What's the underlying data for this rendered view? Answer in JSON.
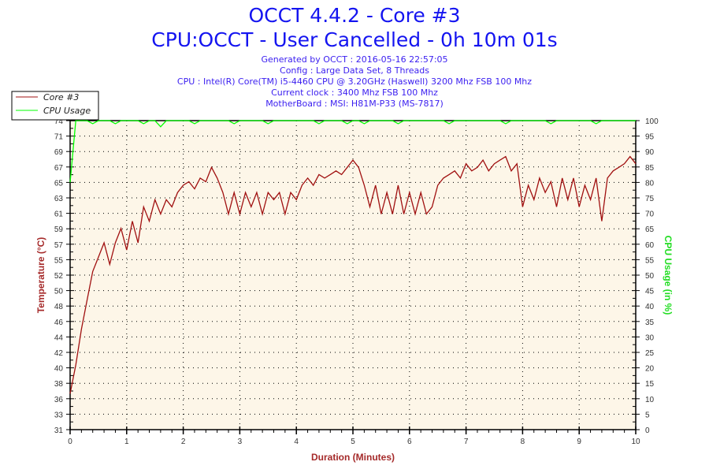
{
  "chart_data": {
    "type": "line",
    "title": "OCCT 4.4.2 - Core #3",
    "subtitle": "CPU:OCCT - User Cancelled - 0h 10m 01s",
    "info_lines": [
      "Generated by OCCT : 2016-05-16 22:57:05",
      "Config : Large Data Set, 8 Threads",
      "CPU : Intel(R) Core(TM) i5-4460 CPU @ 3.20GHz (Haswell) 3200 Mhz FSB 100 Mhz",
      "Current clock : 3400 Mhz FSB 100 Mhz",
      "MotherBoard : MSI: H81M-P33 (MS-7817)"
    ],
    "xlabel": "Duration (Minutes)",
    "ylabel": "Temperature (°C)",
    "y2label": "CPU Usage (in %)",
    "xlim": [
      0,
      10
    ],
    "ylim": [
      31,
      74
    ],
    "y2lim": [
      0,
      100
    ],
    "x_ticks": [
      "0",
      "1",
      "2",
      "3",
      "4",
      "5",
      "6",
      "7",
      "8",
      "9",
      "10"
    ],
    "y_ticks": [
      "74",
      "71",
      "69",
      "67",
      "65",
      "63",
      "61",
      "59",
      "57",
      "55",
      "52",
      "50",
      "48",
      "46",
      "44",
      "42",
      "40",
      "38",
      "36",
      "33",
      "31"
    ],
    "y2_ticks": [
      "100",
      "95",
      "90",
      "85",
      "80",
      "75",
      "70",
      "65",
      "60",
      "55",
      "50",
      "45",
      "40",
      "35",
      "30",
      "25",
      "20",
      "15",
      "10",
      "5",
      "0"
    ],
    "grid": true,
    "legend_position": "top-left",
    "series": [
      {
        "name": "Core #3",
        "axis": "left",
        "color": "#a01010",
        "x_step": 0.1,
        "values": [
          36,
          40,
          45,
          49,
          53,
          55,
          57,
          54,
          57,
          59,
          56,
          60,
          57,
          62,
          60,
          63,
          61,
          63,
          62,
          64,
          65,
          65.5,
          64.5,
          66,
          65.5,
          67.5,
          66,
          64,
          61,
          64,
          61,
          64,
          62,
          64,
          61,
          64,
          63,
          64,
          61,
          64,
          63,
          65,
          66,
          65,
          66.5,
          66,
          66.5,
          67,
          66.5,
          67.5,
          68.5,
          67.5,
          65,
          62,
          65,
          61,
          64,
          61,
          65,
          61,
          64,
          61,
          64,
          61,
          62,
          65,
          66,
          66.5,
          67,
          66,
          68,
          67,
          67.5,
          68.5,
          67,
          68,
          68.5,
          69,
          67,
          68,
          62,
          65,
          63,
          66,
          64,
          65.5,
          62,
          66,
          63,
          66,
          62,
          65,
          63,
          66,
          60,
          66,
          67,
          67.5,
          68,
          69,
          68
        ]
      },
      {
        "name": "CPU Usage",
        "axis": "right",
        "color": "#00ff00",
        "x_step": 0.1,
        "values": [
          80,
          100,
          100,
          100,
          99,
          100,
          100,
          100,
          99,
          100,
          100,
          100,
          100,
          99,
          100,
          100,
          98,
          100,
          100,
          100,
          100,
          100,
          99,
          100,
          100,
          100,
          100,
          100,
          100,
          99,
          100,
          100,
          100,
          100,
          100,
          99,
          100,
          100,
          100,
          100,
          100,
          100,
          100,
          100,
          99,
          100,
          100,
          100,
          100,
          99,
          100,
          100,
          99,
          100,
          100,
          100,
          100,
          100,
          99,
          100,
          100,
          100,
          100,
          100,
          100,
          100,
          100,
          99,
          100,
          100,
          100,
          100,
          100,
          100,
          100,
          100,
          100,
          99,
          100,
          100,
          100,
          100,
          100,
          100,
          100,
          99,
          100,
          100,
          100,
          100,
          100,
          100,
          100,
          99,
          100,
          100,
          100,
          100,
          100,
          100,
          100
        ]
      }
    ]
  }
}
